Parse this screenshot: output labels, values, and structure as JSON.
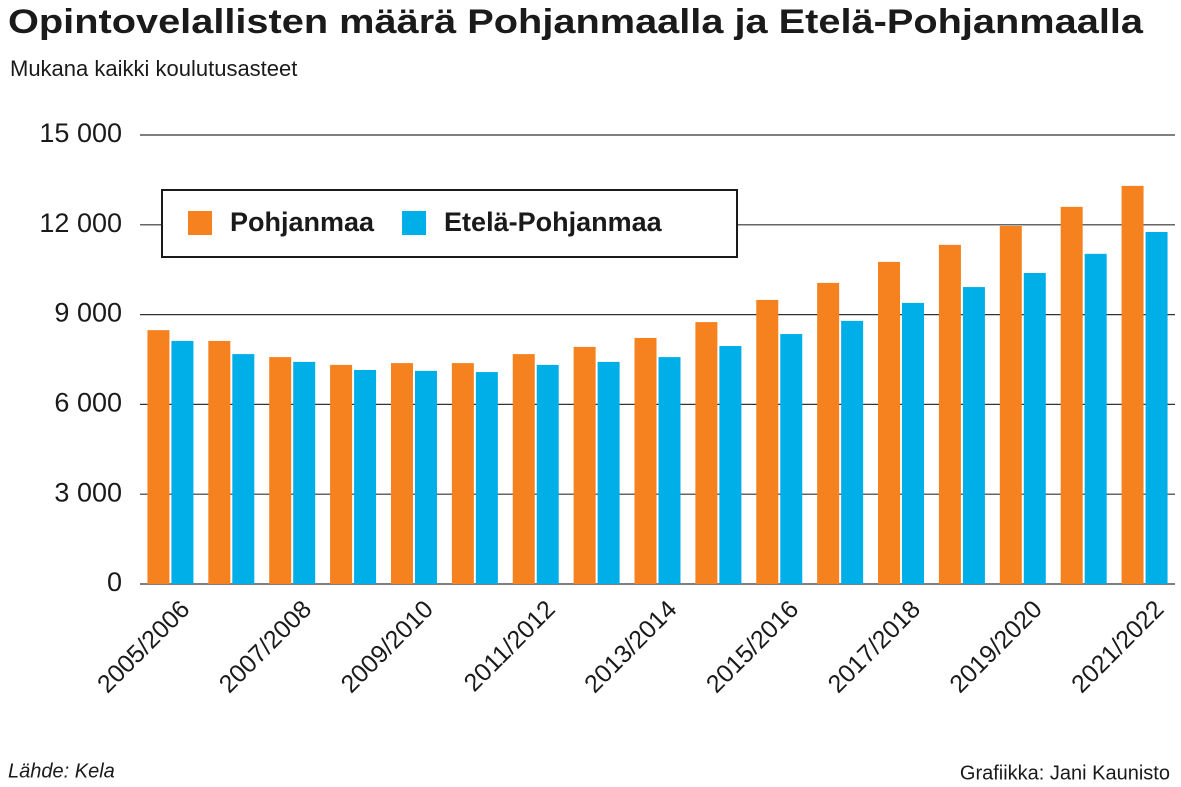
{
  "chart_data": {
    "type": "bar",
    "title": "Opintovelallisten määrä Pohjanmaalla ja Etelä-Pohjanmaalla",
    "subtitle": "Mukana kaikki koulutusasteet",
    "source": "Lähde: Kela",
    "credit": "Grafiikka: Jani Kaunisto",
    "categories": [
      "2005/2006",
      null,
      "2007/2008",
      null,
      "2009/2010",
      null,
      "2011/2012",
      null,
      "2013/2014",
      null,
      "2015/2016",
      null,
      "2017/2018",
      null,
      "2019/2020",
      null,
      "2021/2022"
    ],
    "series": [
      {
        "name": "Pohjanmaa",
        "color": "#f5821f",
        "values": [
          8480,
          8120,
          7580,
          7320,
          7380,
          7380,
          7680,
          7920,
          8220,
          8750,
          9490,
          10060,
          10760,
          11330,
          11960,
          12600,
          13300
        ]
      },
      {
        "name": "Etelä-Pohjanmaa",
        "color": "#00aee8",
        "values": [
          8120,
          7680,
          7420,
          7150,
          7120,
          7080,
          7320,
          7420,
          7580,
          7950,
          8350,
          8790,
          9390,
          9920,
          10390,
          11030,
          11760
        ]
      }
    ],
    "ylim": [
      0,
      15000
    ],
    "yticks": [
      0,
      {
        "value": 3000,
        "label": "3 000"
      },
      {
        "value": 6000,
        "label": "6 000"
      },
      {
        "value": 9000,
        "label": "9 000"
      },
      {
        "value": 12000,
        "label": "12 000"
      },
      {
        "value": 15000,
        "label": "15 000"
      }
    ],
    "grid": true,
    "legend": "top-left"
  }
}
